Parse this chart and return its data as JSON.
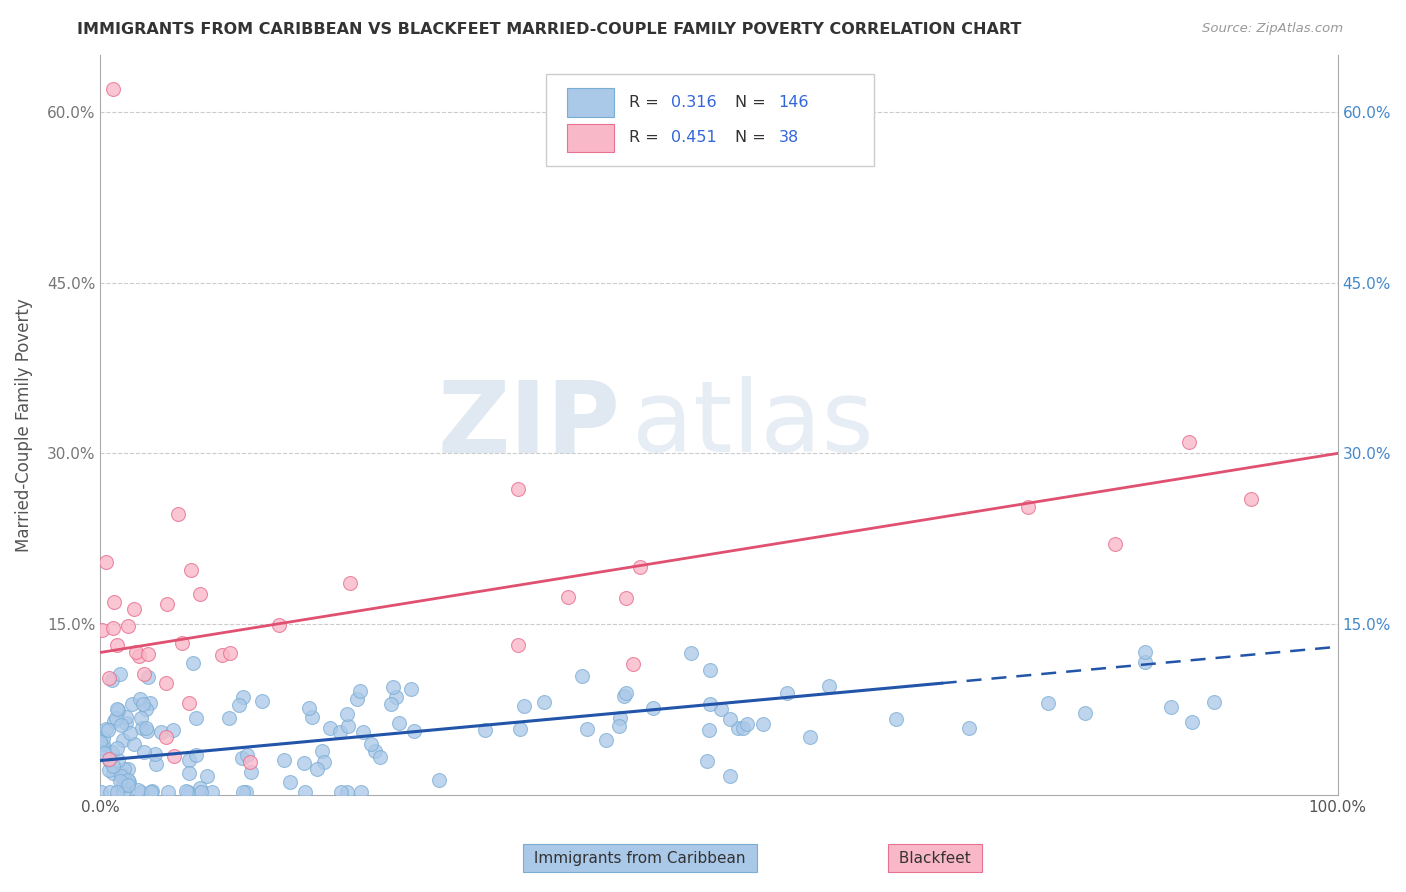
{
  "title": "IMMIGRANTS FROM CARIBBEAN VS BLACKFEET MARRIED-COUPLE FAMILY POVERTY CORRELATION CHART",
  "source": "Source: ZipAtlas.com",
  "ylabel": "Married-Couple Family Poverty",
  "watermark_zip": "ZIP",
  "watermark_atlas": "atlas",
  "xlim": [
    0,
    100
  ],
  "ylim": [
    0,
    65
  ],
  "yticks": [
    0,
    15,
    30,
    45,
    60
  ],
  "grid_color": "#cccccc",
  "background_color": "#ffffff",
  "blue_color": "#aac8e8",
  "blue_edge": "#7aadd4",
  "blue_line": "#2255aa",
  "pink_color": "#f9b8c8",
  "pink_edge": "#e87090",
  "pink_line": "#e05070",
  "legend_text_color": "#333333",
  "legend_val_color": "#3366dd",
  "right_tick_color": "#4488cc",
  "title_color": "#333333",
  "source_color": "#999999"
}
